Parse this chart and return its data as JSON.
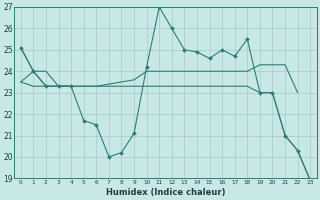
{
  "xlabel": "Humidex (Indice chaleur)",
  "color": "#2e7d6e",
  "bg_color": "#c8e8e8",
  "grid_color": "#aacfcf",
  "ylim": [
    19,
    27
  ],
  "xlim": [
    -0.5,
    23.5
  ],
  "line_wavy_x": [
    0,
    1,
    2,
    3,
    4,
    5,
    6,
    7,
    8,
    9,
    10,
    11,
    12,
    13,
    14,
    15,
    16,
    17,
    18,
    19,
    20,
    21,
    22,
    23
  ],
  "line_wavy_y": [
    25.1,
    24.0,
    23.3,
    23.3,
    23.3,
    21.7,
    21.5,
    20.0,
    20.2,
    21.1,
    24.2,
    27.0,
    26.0,
    25.0,
    24.9,
    24.6,
    25.0,
    24.7,
    25.5,
    23.0,
    23.0,
    21.0,
    20.3,
    18.9
  ],
  "line_upper_x": [
    0,
    1,
    2,
    3,
    4,
    5,
    6,
    7,
    8,
    9,
    10,
    11,
    12,
    13,
    14,
    15,
    16,
    17,
    18,
    19,
    20,
    21,
    22
  ],
  "line_upper_y": [
    23.5,
    24.0,
    24.0,
    23.3,
    23.3,
    23.3,
    23.3,
    23.4,
    23.5,
    23.6,
    24.0,
    24.0,
    24.0,
    24.0,
    24.0,
    24.0,
    24.0,
    24.0,
    24.0,
    24.3,
    24.3,
    24.3,
    23.0
  ],
  "line_lower_x": [
    0,
    1,
    2,
    3,
    4,
    5,
    6,
    7,
    8,
    9,
    10,
    11,
    12,
    13,
    14,
    15,
    16,
    17,
    18,
    19,
    20,
    21,
    22,
    23
  ],
  "line_lower_y": [
    23.5,
    23.3,
    23.3,
    23.3,
    23.3,
    23.3,
    23.3,
    23.3,
    23.3,
    23.3,
    23.3,
    23.3,
    23.3,
    23.3,
    23.3,
    23.3,
    23.3,
    23.3,
    23.3,
    23.0,
    23.0,
    21.0,
    20.3,
    18.9
  ],
  "line_short_x": [
    0,
    1,
    2,
    3,
    4
  ],
  "line_short_y": [
    25.1,
    24.0,
    23.3,
    23.3,
    23.3
  ],
  "yticks": [
    19,
    20,
    21,
    22,
    23,
    24,
    25,
    26,
    27
  ],
  "xticks": [
    0,
    1,
    2,
    3,
    4,
    5,
    6,
    7,
    8,
    9,
    10,
    11,
    12,
    13,
    14,
    15,
    16,
    17,
    18,
    19,
    20,
    21,
    22,
    23
  ]
}
